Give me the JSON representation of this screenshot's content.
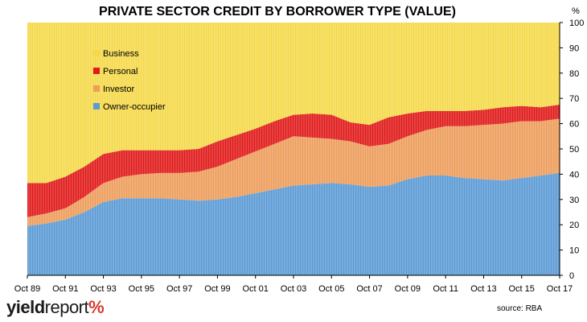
{
  "brand": {
    "part1": "yield",
    "part2": "report",
    "part3": "%"
  },
  "source": "source: RBA",
  "chart_data": {
    "type": "area",
    "title": "PRIVATE SECTOR CREDIT BY BORROWER TYPE (VALUE)",
    "ylabel": "%",
    "xlabel": "",
    "ylim": [
      0,
      100
    ],
    "yticks": [
      0,
      10,
      20,
      30,
      40,
      50,
      60,
      70,
      80,
      90,
      100
    ],
    "xticks": [
      "Oct 89",
      "Oct 91",
      "Oct 93",
      "Oct 95",
      "Oct 97",
      "Oct 99",
      "Oct 01",
      "Oct 03",
      "Oct 05",
      "Oct 07",
      "Oct 09",
      "Oct 11",
      "Oct 13",
      "Oct 15",
      "Oct 17"
    ],
    "legend_position": "upper-left",
    "stacked": true,
    "x": [
      1989.75,
      1990.75,
      1991.75,
      1992.75,
      1993.75,
      1994.75,
      1995.75,
      1996.75,
      1997.75,
      1998.75,
      1999.75,
      2000.75,
      2001.75,
      2002.75,
      2003.75,
      2004.75,
      2005.75,
      2006.75,
      2007.75,
      2008.75,
      2009.75,
      2010.75,
      2011.75,
      2012.75,
      2013.75,
      2014.75,
      2015.75,
      2016.75,
      2017.75
    ],
    "series": [
      {
        "name": "Owner-occupier",
        "color": "#5b9bd5",
        "values": [
          19.5,
          20.5,
          22,
          25,
          29,
          30.5,
          30.5,
          30.5,
          30,
          29.5,
          30,
          31,
          32.5,
          34,
          35.5,
          36,
          36.5,
          36,
          35,
          35.5,
          38,
          39.5,
          39.5,
          38.5,
          38,
          37.5,
          38.5,
          39.5,
          40.5
        ]
      },
      {
        "name": "Investor",
        "color": "#ed9d5c",
        "values": [
          3.5,
          4,
          4.5,
          6,
          7.5,
          8.5,
          9.5,
          10,
          10.5,
          11.5,
          13,
          15,
          16.5,
          18,
          19.5,
          18.5,
          17.5,
          17,
          16,
          16.5,
          17,
          18,
          19.5,
          20.5,
          21.5,
          22.5,
          22.5,
          21.5,
          21.5
        ]
      },
      {
        "name": "Personal",
        "color": "#e01b1b",
        "values": [
          13.5,
          12,
          12.5,
          12,
          11.5,
          10.5,
          9.5,
          9,
          9,
          9,
          10,
          9.5,
          9,
          9,
          8.5,
          9.5,
          9.5,
          7.5,
          8.5,
          10.5,
          9,
          7.5,
          6,
          6,
          6,
          6.5,
          6,
          5.5,
          5.5
        ]
      },
      {
        "name": "Business",
        "color": "#f5d94a",
        "values": [
          63.5,
          63.5,
          61,
          57,
          52,
          50.5,
          50.5,
          50.5,
          50.5,
          50,
          47,
          44.5,
          42,
          39,
          36.5,
          36,
          36.5,
          39.5,
          40.5,
          37.5,
          36,
          35,
          35,
          35,
          34.5,
          33.5,
          33,
          33.5,
          32.5
        ]
      }
    ]
  }
}
